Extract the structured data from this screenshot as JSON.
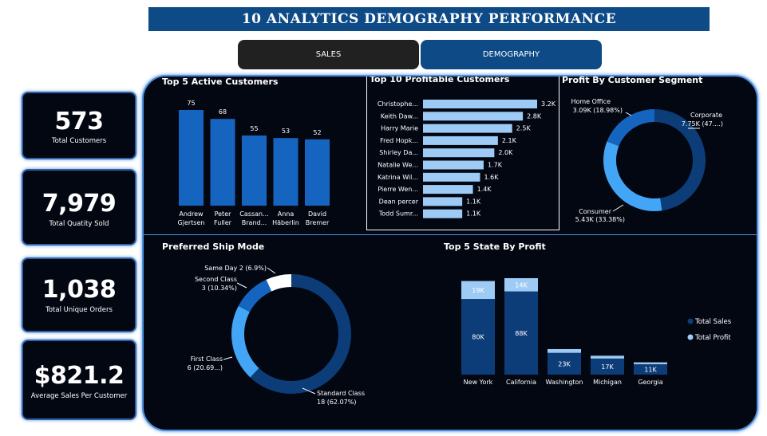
{
  "header": {
    "title": "10 ANALYTICS DEMOGRAPHY PERFORMANCE",
    "tabs": [
      {
        "label": "SALES"
      },
      {
        "label": "DEMOGRAPHY"
      }
    ]
  },
  "kpis": [
    {
      "value": "573",
      "label": "Total Customers"
    },
    {
      "value": "7,979",
      "label": "Total Quatity Sold"
    },
    {
      "value": "1,038",
      "label": "Total Unique Orders"
    },
    {
      "value": "$821.2",
      "label": "Average Sales Per Customer"
    }
  ],
  "colors": {
    "dark_blue": "#0d3d78",
    "mid_blue": "#1565c0",
    "light_blue": "#42a5f5",
    "pale_blue": "#9ecbf5",
    "white": "#ffffff"
  },
  "chart_data": [
    {
      "type": "bar",
      "title": "Top 5 Active Customers",
      "categories": [
        "Andrew Gjertsen",
        "Peter Fuller",
        "Cassan... Brand...",
        "Anna Häberlin",
        "David Bremer"
      ],
      "category_lines": [
        [
          "Andrew",
          "Gjertsen"
        ],
        [
          "Peter",
          "Fuller"
        ],
        [
          "Cassan...",
          "Brand..."
        ],
        [
          "Anna",
          "Häberlin"
        ],
        [
          "David",
          "Bremer"
        ]
      ],
      "values": [
        75,
        68,
        55,
        53,
        52
      ],
      "value_labels": [
        "75",
        "68",
        "55",
        "53",
        "52"
      ]
    },
    {
      "type": "bar",
      "orientation": "horizontal",
      "title": "Top 10 Profitable Customers",
      "categories": [
        "Christophe...",
        "Keith Daw...",
        "Harry Marie",
        "Fred Hopk...",
        "Shirley Da...",
        "Natalie We...",
        "Katrina Wil...",
        "Pierre Wen...",
        "Dean percer",
        "Todd Sumr..."
      ],
      "values": [
        3200,
        2800,
        2500,
        2100,
        2000,
        1700,
        1600,
        1400,
        1100,
        1100
      ],
      "value_labels": [
        "3.2K",
        "2.8K",
        "2.5K",
        "2.1K",
        "2.0K",
        "1.7K",
        "1.6K",
        "1.4K",
        "1.1K",
        "1.1K"
      ]
    },
    {
      "type": "pie",
      "title": "Profit By Customer Segment",
      "categories": [
        "Corporate",
        "Consumer",
        "Home Office"
      ],
      "values": [
        7750,
        5430,
        3090
      ],
      "percents": [
        47.64,
        33.38,
        18.98
      ],
      "value_labels": [
        "7.75K (47....)",
        "5.43K (33.38%)",
        "3.09K (18.98%)"
      ],
      "colors": [
        "#0d3d78",
        "#42a5f5",
        "#1565c0"
      ]
    },
    {
      "type": "pie",
      "title": "Preferred Ship Mode",
      "categories": [
        "Standard Class",
        "First Class",
        "Second Class",
        "Same Day"
      ],
      "values": [
        18,
        6,
        3,
        2
      ],
      "value_labels": [
        "18 (62.07%)",
        "6 (20.69...)",
        "3 (10.34%)",
        "2 (6.9%)"
      ],
      "colors": [
        "#0d3d78",
        "#42a5f5",
        "#1565c0",
        "#ffffff"
      ]
    },
    {
      "type": "bar",
      "stacked": true,
      "title": "Top 5 State By Profit",
      "categories": [
        "New York",
        "California",
        "Washington",
        "Michigan",
        "Georgia"
      ],
      "series": [
        {
          "name": "Total Sales",
          "values": [
            80000,
            88000,
            23000,
            17000,
            11000
          ],
          "labels": [
            "80K",
            "88K",
            "23K",
            "17K",
            "11K"
          ],
          "color": "#0d3d78"
        },
        {
          "name": "Total Profit",
          "values": [
            19000,
            14000,
            4000,
            3000,
            2000
          ],
          "labels": [
            "19K",
            "14K",
            "",
            "",
            ""
          ],
          "color": "#9ecbf5"
        }
      ],
      "legend": "right"
    }
  ]
}
